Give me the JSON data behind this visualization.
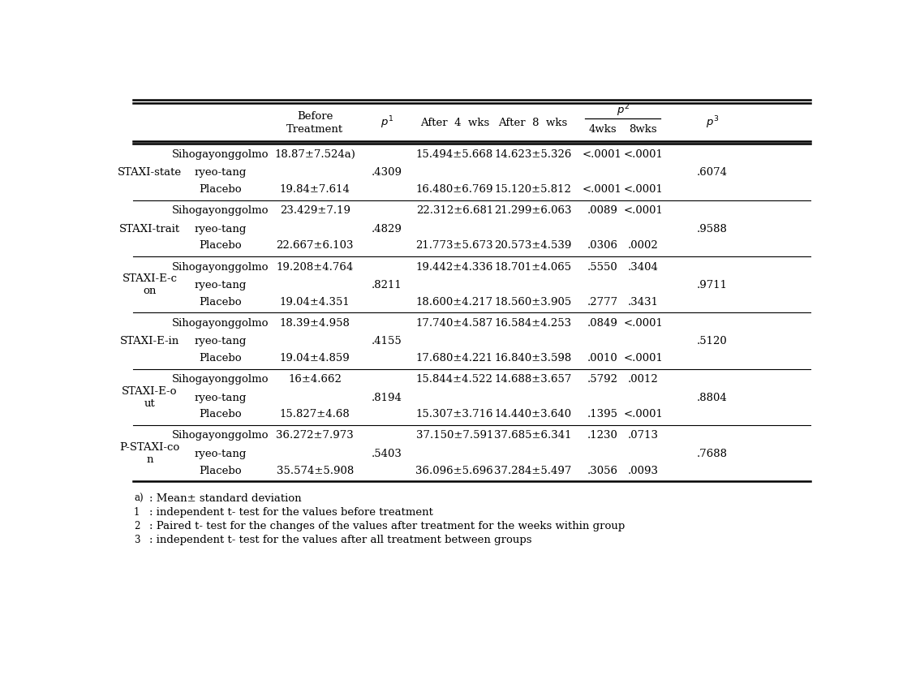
{
  "rows": [
    {
      "label": "STAXI-state",
      "subrows": [
        [
          "Sihogayonggolmo\nryeo-tang",
          "18.87±7.524a)",
          ".4309",
          "15.494±5.668",
          "14.623±5.326",
          "<.0001",
          "<.0001",
          ".6074"
        ],
        [
          "Placebo",
          "19.84±7.614",
          "",
          "16.480±6.769",
          "15.120±5.812",
          "<.0001",
          "<.0001",
          ""
        ]
      ]
    },
    {
      "label": "STAXI-trait",
      "subrows": [
        [
          "Sihogayonggolmo\nryeo-tang",
          "23.429±7.19",
          ".4829",
          "22.312±6.681",
          "21.299±6.063",
          ".0089",
          "<.0001",
          ".9588"
        ],
        [
          "Placebo",
          "22.667±6.103",
          "",
          "21.773±5.673",
          "20.573±4.539",
          ".0306",
          ".0002",
          ""
        ]
      ]
    },
    {
      "label": "STAXI-E-c\non",
      "subrows": [
        [
          "Sihogayonggolmo\nryeo-tang",
          "19.208±4.764",
          ".8211",
          "19.442±4.336",
          "18.701±4.065",
          ".5550",
          ".3404",
          ".9711"
        ],
        [
          "Placebo",
          "19.04±4.351",
          "",
          "18.600±4.217",
          "18.560±3.905",
          ".2777",
          ".3431",
          ""
        ]
      ]
    },
    {
      "label": "STAXI-E-in",
      "subrows": [
        [
          "Sihogayonggolmo\nryeo-tang",
          "18.39±4.958",
          ".4155",
          "17.740±4.587",
          "16.584±4.253",
          ".0849",
          "<.0001",
          ".5120"
        ],
        [
          "Placebo",
          "19.04±4.859",
          "",
          "17.680±4.221",
          "16.840±3.598",
          ".0010",
          "<.0001",
          ""
        ]
      ]
    },
    {
      "label": "STAXI-E-o\nut",
      "subrows": [
        [
          "Sihogayonggolmo\nryeo-tang",
          "16±4.662",
          ".8194",
          "15.844±4.522",
          "14.688±3.657",
          ".5792",
          ".0012",
          ".8804"
        ],
        [
          "Placebo",
          "15.827±4.68",
          "",
          "15.307±3.716",
          "14.440±3.640",
          ".1395",
          "<.0001",
          ""
        ]
      ]
    },
    {
      "label": "P-STAXI-co\nn",
      "subrows": [
        [
          "Sihogayonggolmo\nryeo-tang",
          "36.272±7.973",
          ".5403",
          "37.150±7.591",
          "37.685±6.341",
          ".1230",
          ".0713",
          ".7688"
        ],
        [
          "Placebo",
          "35.574±5.908",
          "",
          "36.096±5.696",
          "37.284±5.497",
          ".3056",
          ".0093",
          ""
        ]
      ]
    }
  ],
  "footnotes": [
    [
      "a)",
      ": Mean± standard deviation"
    ],
    [
      "1",
      ": independent t- test for the values before treatment"
    ],
    [
      "2",
      ": Paired t- test for the changes of the values after treatment for the weeks within group"
    ],
    [
      "3",
      ": independent t- test for the values after all treatment between groups"
    ]
  ],
  "bg_color": "white",
  "text_color": "black",
  "font_size": 9.5
}
